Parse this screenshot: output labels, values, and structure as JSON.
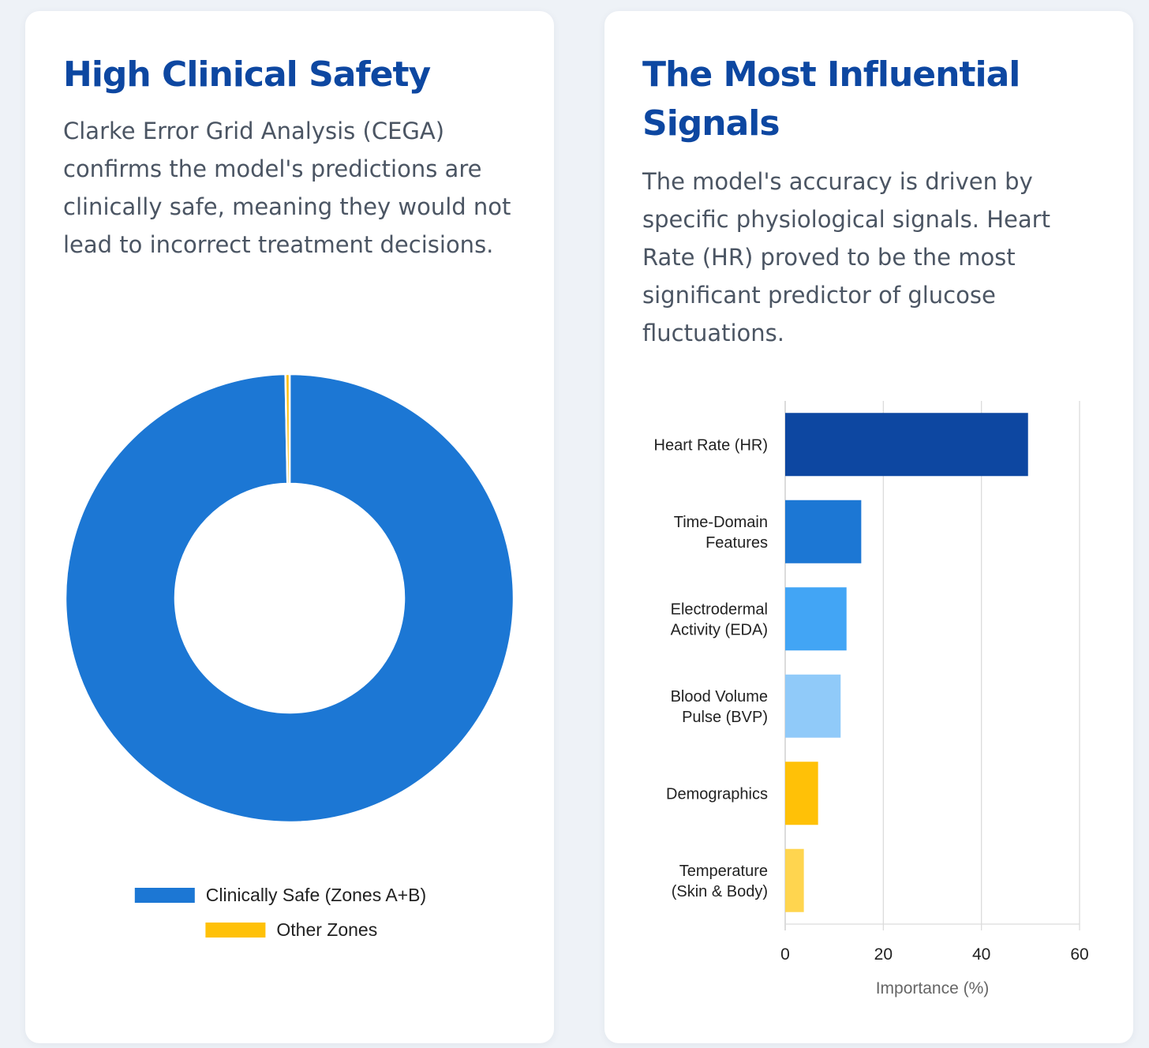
{
  "left_card": {
    "title": "High Clinical Safety",
    "description": "Clarke Error Grid Analysis (CEGA) confirms the model's predictions are clinically safe, meaning they would not lead to incorrect treatment decisions."
  },
  "right_card": {
    "title": "The Most Influential Signals",
    "description": "The model's accuracy is driven by specific physiological signals. Heart Rate (HR) proved to be the most significant predictor of glucose fluctuations."
  },
  "chart_data": [
    {
      "type": "pie",
      "variant": "doughnut",
      "title": "",
      "labels": [
        "Clinically Safe (Zones A+B)",
        "Other Zones"
      ],
      "values": [
        99.7,
        0.3
      ],
      "colors": [
        "#1c77d4",
        "#ffc107"
      ],
      "legend": "bottom"
    },
    {
      "type": "bar",
      "orientation": "horizontal",
      "title": "",
      "categories": [
        [
          "Heart Rate (HR)"
        ],
        [
          "Time-Domain",
          "Features"
        ],
        [
          "Electrodermal",
          "Activity (EDA)"
        ],
        [
          "Blood Volume",
          "Pulse (BVP)"
        ],
        [
          "Demographics"
        ],
        [
          "Temperature",
          "(Skin & Body)"
        ]
      ],
      "values": [
        49.5,
        15.5,
        12.5,
        11.3,
        6.7,
        3.8
      ],
      "colors": [
        "#0d47a1",
        "#1c77d4",
        "#42a5f5",
        "#90caf9",
        "#ffc107",
        "#ffd54f"
      ],
      "xlabel": "Importance (%)",
      "ylabel": "",
      "xlim": [
        0,
        60
      ],
      "xticks": [
        "0",
        "20",
        "40",
        "60"
      ],
      "grid": true
    }
  ]
}
